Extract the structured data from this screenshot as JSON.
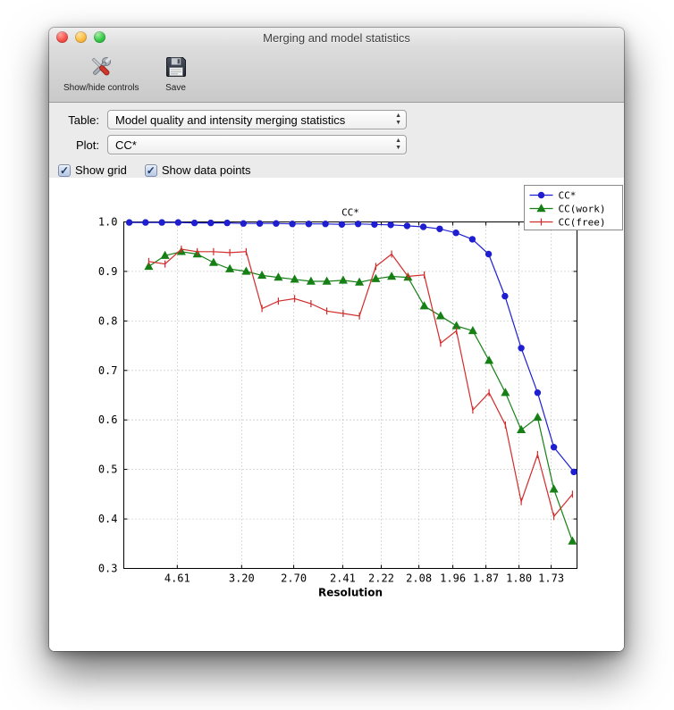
{
  "window": {
    "title": "Merging and model statistics"
  },
  "toolbar": {
    "buttons": [
      {
        "label": "Show/hide controls",
        "icon": "tools-icon"
      },
      {
        "label": "Save",
        "icon": "save-icon"
      }
    ]
  },
  "controls": {
    "table_label": "Table:",
    "table_value": "Model quality and intensity merging statistics",
    "plot_label": "Plot:",
    "plot_value": "CC*",
    "checkboxes": [
      {
        "label": "Show grid",
        "checked": true
      },
      {
        "label": "Show data points",
        "checked": true
      }
    ]
  },
  "chart_data": {
    "type": "line",
    "title": "CC*",
    "xlabel": "Resolution",
    "ylabel": "",
    "ylim": [
      0.3,
      1.0
    ],
    "yticks": [
      0.3,
      0.4,
      0.5,
      0.6,
      0.7,
      0.8,
      0.9,
      1.0
    ],
    "xticks": [
      {
        "pos": 0.118,
        "label": "4.61"
      },
      {
        "pos": 0.26,
        "label": "3.20"
      },
      {
        "pos": 0.375,
        "label": "2.70"
      },
      {
        "pos": 0.483,
        "label": "2.41"
      },
      {
        "pos": 0.568,
        "label": "2.22"
      },
      {
        "pos": 0.651,
        "label": "2.08"
      },
      {
        "pos": 0.726,
        "label": "1.96"
      },
      {
        "pos": 0.799,
        "label": "1.87"
      },
      {
        "pos": 0.872,
        "label": "1.80"
      },
      {
        "pos": 0.943,
        "label": "1.73"
      }
    ],
    "grid": true,
    "show_data_points": true,
    "legend_position": "upper right",
    "series": [
      {
        "name": "CC*",
        "color": "#1f1fd1",
        "marker": "circle",
        "x": [
          0.012,
          0.048,
          0.084,
          0.12,
          0.156,
          0.192,
          0.228,
          0.264,
          0.3,
          0.336,
          0.372,
          0.408,
          0.445,
          0.481,
          0.517,
          0.553,
          0.589,
          0.625,
          0.661,
          0.697,
          0.733,
          0.769,
          0.805,
          0.841,
          0.877,
          0.913,
          0.949,
          0.993
        ],
        "y": [
          0.999,
          0.999,
          0.999,
          0.999,
          0.998,
          0.998,
          0.998,
          0.997,
          0.997,
          0.997,
          0.996,
          0.996,
          0.996,
          0.995,
          0.996,
          0.995,
          0.994,
          0.992,
          0.99,
          0.986,
          0.978,
          0.965,
          0.935,
          0.85,
          0.745,
          0.655,
          0.545,
          0.495
        ]
      },
      {
        "name": "CC(work)",
        "color": "#168016",
        "marker": "triangle",
        "x": [
          0.055,
          0.091,
          0.127,
          0.162,
          0.198,
          0.234,
          0.27,
          0.305,
          0.341,
          0.377,
          0.413,
          0.448,
          0.484,
          0.52,
          0.556,
          0.591,
          0.627,
          0.663,
          0.699,
          0.734,
          0.77,
          0.806,
          0.842,
          0.877,
          0.913,
          0.949,
          0.99
        ],
        "y": [
          0.91,
          0.932,
          0.94,
          0.935,
          0.918,
          0.905,
          0.9,
          0.892,
          0.888,
          0.884,
          0.88,
          0.88,
          0.882,
          0.878,
          0.885,
          0.89,
          0.888,
          0.83,
          0.81,
          0.79,
          0.78,
          0.72,
          0.655,
          0.58,
          0.605,
          0.46,
          0.355
        ]
      },
      {
        "name": "CC(free)",
        "color": "#d22c2c",
        "marker": "vtick",
        "x": [
          0.055,
          0.091,
          0.127,
          0.162,
          0.198,
          0.234,
          0.27,
          0.305,
          0.341,
          0.377,
          0.413,
          0.448,
          0.484,
          0.52,
          0.556,
          0.591,
          0.627,
          0.663,
          0.699,
          0.734,
          0.77,
          0.806,
          0.842,
          0.877,
          0.913,
          0.949,
          0.99
        ],
        "y": [
          0.92,
          0.915,
          0.945,
          0.94,
          0.94,
          0.938,
          0.94,
          0.825,
          0.84,
          0.845,
          0.835,
          0.82,
          0.815,
          0.81,
          0.91,
          0.935,
          0.89,
          0.893,
          0.755,
          0.78,
          0.62,
          0.655,
          0.59,
          0.435,
          0.53,
          0.405,
          0.45
        ]
      }
    ]
  }
}
